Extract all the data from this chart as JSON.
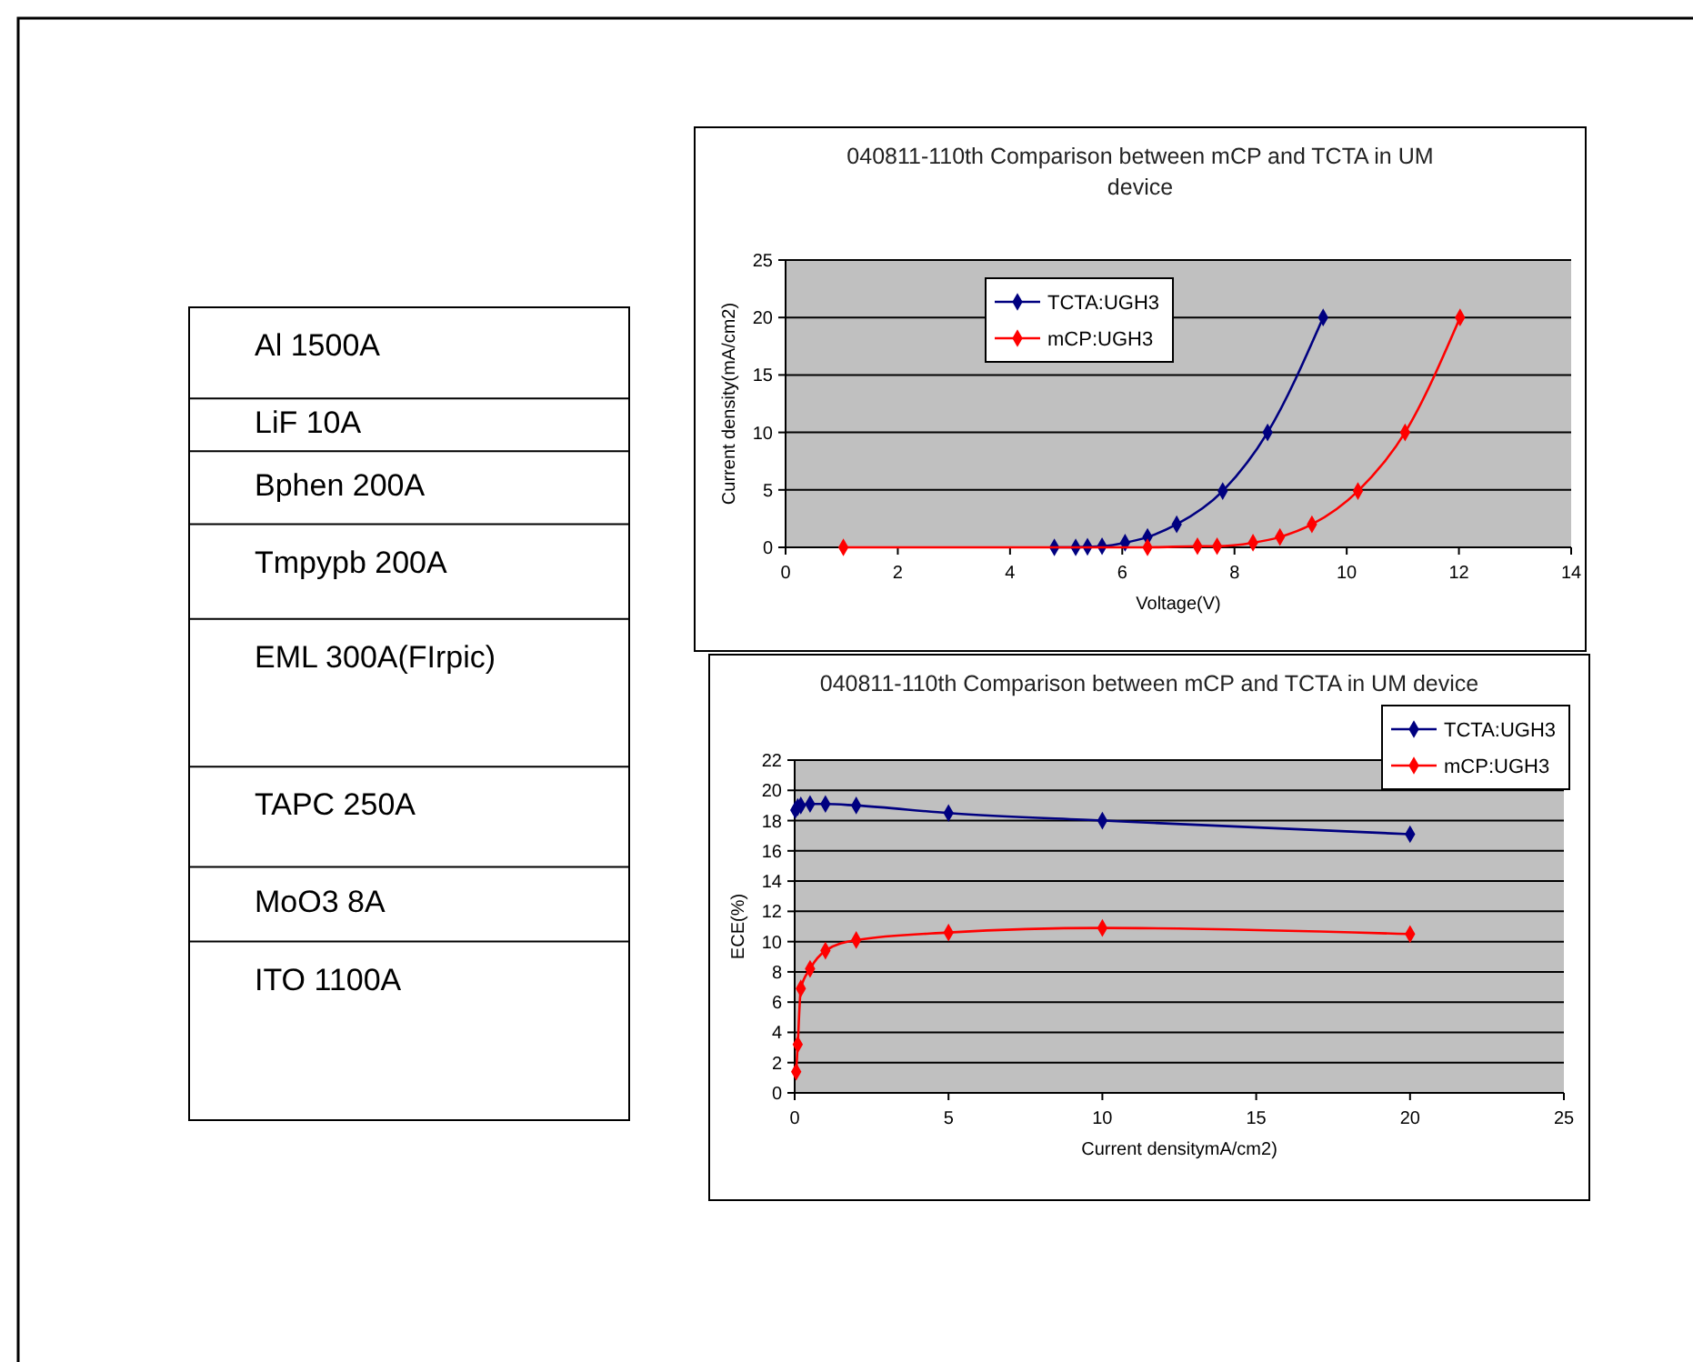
{
  "chart_data": [
    {
      "type": "other",
      "annotations": [
        "Al  1500A",
        "LiF 10A",
        "Bphen 200A",
        "Tmpypb 200A",
        "EML 300A(FIrpic)",
        "TAPC 250A",
        "MoO3 8A",
        "ITO 1100A"
      ]
    },
    {
      "type": "line",
      "title": "040811-110th Comparison between mCP and TCTA in UM device",
      "xlabel": "Voltage(V)",
      "ylabel": "Current density(mA/cm2)",
      "xlim": [
        0,
        14
      ],
      "xticks": [
        0,
        2,
        4,
        6,
        8,
        10,
        12,
        14
      ],
      "ylim": [
        0,
        25
      ],
      "yticks": [
        0,
        5,
        10,
        15,
        20,
        25
      ],
      "grid": "y",
      "legend": "top left",
      "marker": "diamond",
      "series": [
        {
          "name": "TCTA:UGH3",
          "color": "#000080",
          "x": [
            4.79,
            5.17,
            5.38,
            5.64,
            6.05,
            6.45,
            6.97,
            7.79,
            8.59,
            9.58
          ],
          "values": [
            0,
            0,
            0.05,
            0.1,
            0.4,
            0.9,
            2.0,
            4.9,
            10,
            20
          ]
        },
        {
          "name": "mCP:UGH3",
          "color": "#ff0000",
          "x": [
            1.03,
            6.45,
            7.34,
            7.69,
            8.33,
            8.81,
            9.38,
            10.2,
            11.04,
            12.02
          ],
          "values": [
            0,
            0,
            0.1,
            0.1,
            0.4,
            0.9,
            2.0,
            4.9,
            10,
            20
          ]
        }
      ]
    },
    {
      "type": "line",
      "title": "040811-110th Comparison between mCP and TCTA in UM device",
      "xlabel": "Current densitymA/cm2)",
      "ylabel": "ECE(%)",
      "xlim": [
        0,
        25
      ],
      "xticks": [
        0,
        5,
        10,
        15,
        20,
        25
      ],
      "ylim": [
        0,
        22
      ],
      "yticks": [
        0,
        2,
        4,
        6,
        8,
        10,
        12,
        14,
        16,
        18,
        20,
        22
      ],
      "grid": "y",
      "legend": "top right",
      "marker": "diamond",
      "series": [
        {
          "name": "TCTA:UGH3",
          "color": "#000080",
          "x": [
            0.02,
            0.1,
            0.2,
            0.5,
            1,
            2,
            5,
            10,
            20
          ],
          "values": [
            18.7,
            18.9,
            19.0,
            19.1,
            19.1,
            19.0,
            18.5,
            18.0,
            17.1
          ]
        },
        {
          "name": "mCP:UGH3",
          "color": "#ff0000",
          "x": [
            0.05,
            0.1,
            0.2,
            0.5,
            1,
            2,
            5,
            10,
            20
          ],
          "values": [
            1.4,
            3.2,
            6.9,
            8.2,
            9.4,
            10.1,
            10.6,
            10.9,
            10.5
          ]
        }
      ]
    }
  ]
}
